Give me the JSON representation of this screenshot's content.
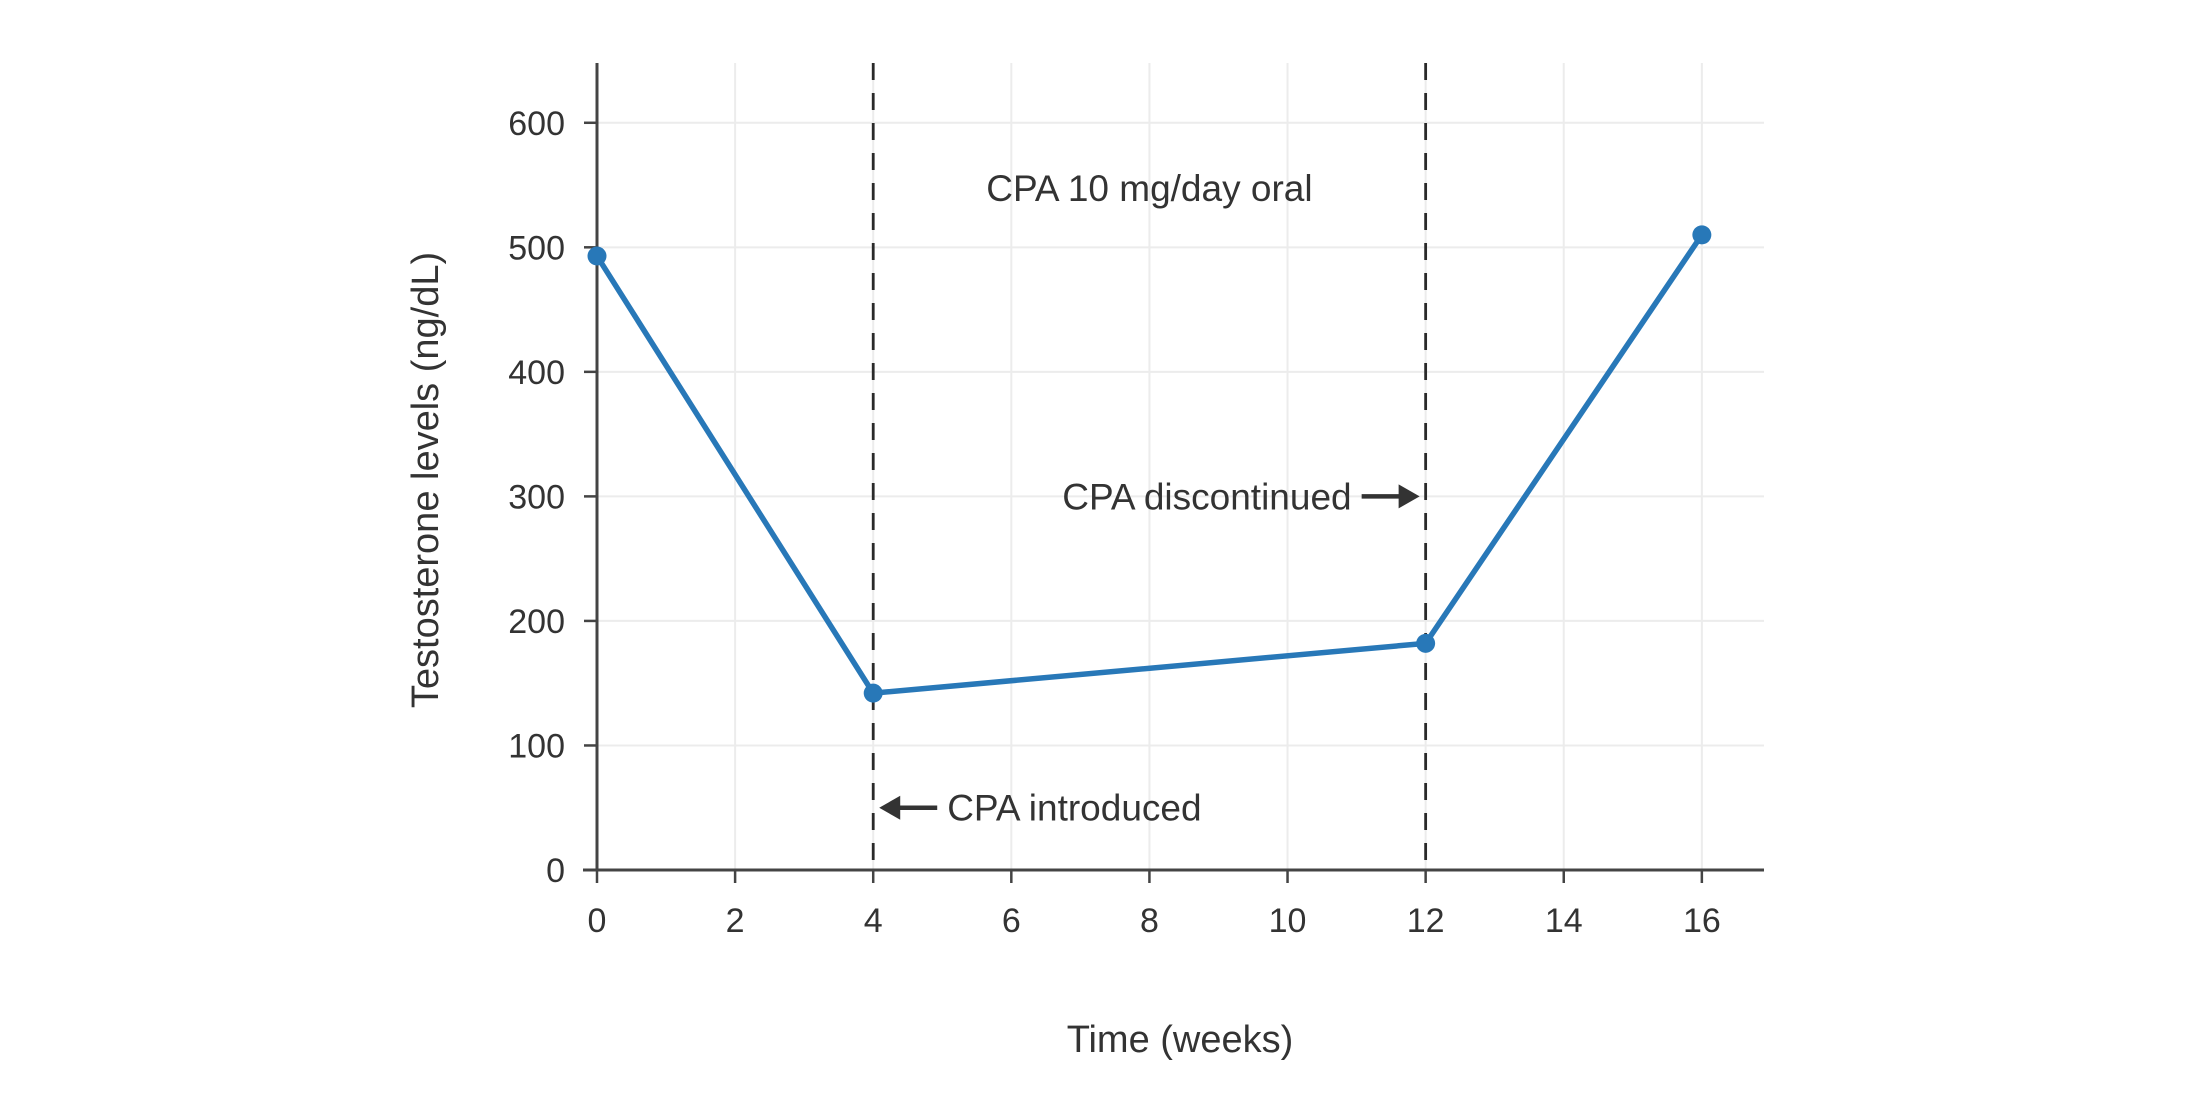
{
  "chart_data": {
    "type": "line",
    "title": "",
    "xlabel": "Time (weeks)",
    "ylabel": "Testosterone levels (ng/dL)",
    "x": [
      0,
      4,
      12,
      16
    ],
    "y": [
      493,
      142,
      182,
      510
    ],
    "series_name": "Testosterone levels",
    "xlim": [
      0,
      16.9
    ],
    "ylim": [
      0,
      648
    ],
    "x_ticks": [
      0,
      2,
      4,
      6,
      8,
      10,
      12,
      14,
      16
    ],
    "y_ticks": [
      0,
      100,
      200,
      300,
      400,
      500,
      600
    ],
    "grid": true,
    "legend": false,
    "vlines": [
      {
        "x": 4,
        "style": "dashed"
      },
      {
        "x": 12,
        "style": "dashed"
      }
    ],
    "annotations": [
      {
        "text": "CPA 10 mg/day oral",
        "x": 8,
        "y": 547,
        "arrow": "none"
      },
      {
        "text": "CPA discontinued",
        "x": 12,
        "y": 300,
        "arrow": "right"
      },
      {
        "text": "CPA introduced",
        "x": 4,
        "y": 50,
        "arrow": "left"
      }
    ]
  },
  "colors": {
    "line": "#2878b8",
    "marker": "#2878b8",
    "axis": "#444444",
    "tick_text": "#333333",
    "grid": "#ececec",
    "dashed_line": "#2a2a2a",
    "annotation_text": "#333333",
    "arrow": "#333333",
    "background": "#ffffff"
  }
}
